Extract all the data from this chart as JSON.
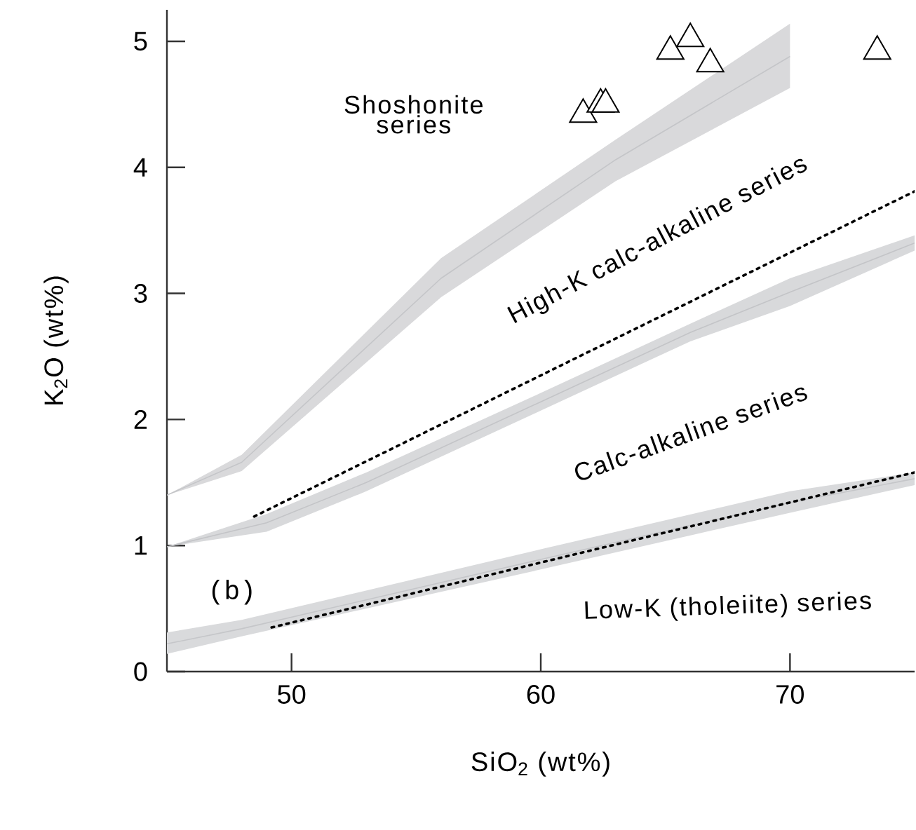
{
  "chart_data": {
    "type": "line",
    "xlabel": "SiO$_{2}$ (wt%)",
    "ylabel": "K$_{2}$O (wt%)",
    "xlim": [
      45,
      75
    ],
    "ylim": [
      0,
      5.25
    ],
    "xticks": [
      50,
      60,
      70
    ],
    "yticks": [
      0,
      1,
      2,
      3,
      4,
      5
    ],
    "annotations": [
      "Shoshonite series",
      "High-K calc-alkaline series",
      "Calc-alkaline series",
      "Low-K (tholeiite) series",
      "(b)"
    ],
    "series": [
      {
        "color": "#c4c5c8",
        "x": [
          45,
          48,
          56,
          63,
          70
        ],
        "values": [
          1.4,
          1.66,
          3.12,
          4.06,
          4.88
        ],
        "lower": [
          1.4,
          1.59,
          2.97,
          3.89,
          4.63
        ],
        "upper": [
          1.4,
          1.72,
          3.28,
          4.22,
          5.14
        ]
      },
      {
        "color": "#c3c4c7",
        "x": [
          45,
          49,
          53,
          60,
          66,
          70,
          75
        ],
        "values": [
          0.99,
          1.18,
          1.5,
          2.14,
          2.69,
          3.01,
          3.4
        ],
        "lower": [
          0.99,
          1.11,
          1.43,
          2.07,
          2.62,
          2.9,
          3.34
        ],
        "upper": [
          0.99,
          1.25,
          1.58,
          2.21,
          2.76,
          3.12,
          3.46
        ]
      },
      {
        "color": "#c5c6c9",
        "x": [
          45,
          48,
          60,
          70,
          75
        ],
        "values": [
          0.22,
          0.34,
          0.89,
          1.34,
          1.53
        ],
        "lower": [
          0.14,
          0.28,
          0.81,
          1.26,
          1.48
        ],
        "upper": [
          0.31,
          0.41,
          0.97,
          1.43,
          1.58
        ]
      },
      {
        "color": "#000000",
        "line_style": "dotted",
        "x": [
          48.5,
          75
        ],
        "values": [
          1.23,
          3.81
        ]
      },
      {
        "color": "#000000",
        "line_style": "dotted",
        "x": [
          49.2,
          75
        ],
        "values": [
          0.35,
          1.58
        ]
      },
      {
        "type": "scatter",
        "color": "#000000",
        "marker": "triangle",
        "x": [
          61.7,
          62.4,
          62.6,
          65.2,
          66.0,
          66.8,
          73.5
        ],
        "values": [
          4.42,
          4.5,
          4.5,
          4.92,
          5.02,
          4.82,
          4.92
        ]
      }
    ]
  }
}
